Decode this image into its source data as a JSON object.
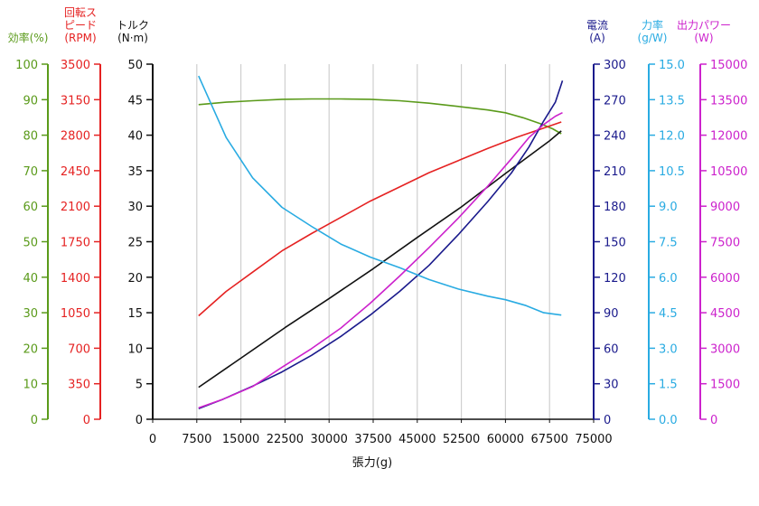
{
  "chart_data": {
    "type": "line",
    "xlabel": "張力(g)",
    "x_axis": {
      "min": 0,
      "max": 75000,
      "ticks": [
        0,
        7500,
        15000,
        22500,
        30000,
        37500,
        45000,
        52500,
        60000,
        67500,
        75000
      ]
    },
    "vertical_gridlines": [
      7500,
      15000,
      22500,
      30000,
      37500,
      45000,
      52500,
      60000,
      67500
    ],
    "y_axes": [
      {
        "key": "efficiency",
        "title_lines": [
          "効率(%)"
        ],
        "color": "#5a9a1a",
        "min": 0,
        "max": 100,
        "ticks": [
          0,
          10,
          20,
          30,
          40,
          50,
          60,
          70,
          80,
          90,
          100
        ]
      },
      {
        "key": "rpm",
        "title_lines": [
          "回転ス",
          "ピード",
          "(RPM)"
        ],
        "color": "#e52222",
        "min": 0,
        "max": 3500,
        "ticks": [
          0,
          350,
          700,
          1050,
          1400,
          1750,
          2100,
          2450,
          2800,
          3150,
          3500
        ]
      },
      {
        "key": "torque",
        "title_lines": [
          "トルク",
          "(N·m)"
        ],
        "color": "#111111",
        "min": 0,
        "max": 50,
        "ticks": [
          0,
          5,
          10,
          15,
          20,
          25,
          30,
          35,
          40,
          45,
          50
        ]
      },
      {
        "key": "current",
        "title_lines": [
          "電流",
          "(A)"
        ],
        "color": "#1a1a8c",
        "min": 0,
        "max": 300,
        "ticks": [
          0,
          30,
          60,
          90,
          120,
          150,
          180,
          210,
          240,
          270,
          300
        ]
      },
      {
        "key": "force",
        "title_lines": [
          "力率",
          "(g/W)"
        ],
        "color": "#29abe2",
        "min": 0,
        "max": 15,
        "ticks": [
          "0.0",
          "1.5",
          "3.0",
          "4.5",
          "6.0",
          "7.5",
          "9.0",
          "10.5",
          "12.0",
          "13.5",
          "15.0"
        ]
      },
      {
        "key": "power",
        "title_lines": [
          "出力パワー",
          "(W)"
        ],
        "color": "#cc22cc",
        "min": 0,
        "max": 15000,
        "ticks": [
          0,
          1500,
          3000,
          4500,
          6000,
          7500,
          9000,
          10500,
          12000,
          13500,
          15000
        ]
      }
    ],
    "series": [
      {
        "axis": "efficiency",
        "color": "#5a9a1a",
        "points": [
          [
            7800,
            88.6
          ],
          [
            12500,
            89.3
          ],
          [
            17000,
            89.7
          ],
          [
            22000,
            90.1
          ],
          [
            27000,
            90.2
          ],
          [
            32000,
            90.2
          ],
          [
            37000,
            90.1
          ],
          [
            42000,
            89.7
          ],
          [
            47000,
            89.0
          ],
          [
            52000,
            88.1
          ],
          [
            57000,
            87.1
          ],
          [
            60000,
            86.3
          ],
          [
            63000,
            84.9
          ],
          [
            66000,
            83.2
          ],
          [
            68000,
            81.8
          ],
          [
            69500,
            80.4
          ]
        ]
      },
      {
        "axis": "rpm",
        "color": "#e52222",
        "points": [
          [
            7800,
            1020
          ],
          [
            12500,
            1260
          ],
          [
            17000,
            1450
          ],
          [
            22000,
            1660
          ],
          [
            27000,
            1830
          ],
          [
            32000,
            1990
          ],
          [
            37000,
            2150
          ],
          [
            42000,
            2290
          ],
          [
            47000,
            2430
          ],
          [
            52000,
            2550
          ],
          [
            57000,
            2670
          ],
          [
            62000,
            2780
          ],
          [
            66000,
            2860
          ],
          [
            69500,
            2930
          ]
        ]
      },
      {
        "axis": "torque",
        "color": "#111111",
        "points": [
          [
            7800,
            4.5
          ],
          [
            15000,
            8.6
          ],
          [
            22500,
            12.9
          ],
          [
            30000,
            17.0
          ],
          [
            37500,
            21.2
          ],
          [
            45000,
            25.6
          ],
          [
            52500,
            29.9
          ],
          [
            60000,
            34.6
          ],
          [
            67500,
            39.2
          ],
          [
            69500,
            40.6
          ]
        ]
      },
      {
        "axis": "current",
        "color": "#1a1a8c",
        "points": [
          [
            7800,
            9
          ],
          [
            12000,
            17
          ],
          [
            17000,
            28
          ],
          [
            22000,
            40
          ],
          [
            27000,
            54
          ],
          [
            32000,
            70
          ],
          [
            37000,
            88
          ],
          [
            42000,
            108
          ],
          [
            47000,
            130
          ],
          [
            52000,
            156
          ],
          [
            57000,
            184
          ],
          [
            61000,
            208
          ],
          [
            64000,
            230
          ],
          [
            66500,
            252
          ],
          [
            68500,
            268
          ],
          [
            69500,
            283
          ],
          [
            69700,
            286
          ]
        ]
      },
      {
        "axis": "force",
        "color": "#29abe2",
        "points": [
          [
            7800,
            14.5
          ],
          [
            12500,
            11.9
          ],
          [
            17000,
            10.2
          ],
          [
            22000,
            8.95
          ],
          [
            27000,
            8.15
          ],
          [
            32000,
            7.4
          ],
          [
            37000,
            6.85
          ],
          [
            42000,
            6.4
          ],
          [
            47000,
            5.9
          ],
          [
            52000,
            5.5
          ],
          [
            57000,
            5.2
          ],
          [
            60000,
            5.05
          ],
          [
            63500,
            4.8
          ],
          [
            66500,
            4.5
          ],
          [
            69500,
            4.4
          ]
        ]
      },
      {
        "axis": "power",
        "color": "#cc22cc",
        "points": [
          [
            7800,
            480
          ],
          [
            12000,
            850
          ],
          [
            17000,
            1380
          ],
          [
            22000,
            2200
          ],
          [
            27000,
            2980
          ],
          [
            32000,
            3850
          ],
          [
            37000,
            4900
          ],
          [
            42000,
            6050
          ],
          [
            47000,
            7250
          ],
          [
            52000,
            8500
          ],
          [
            57000,
            9850
          ],
          [
            61000,
            11000
          ],
          [
            64000,
            11900
          ],
          [
            66500,
            12450
          ],
          [
            68500,
            12800
          ],
          [
            69700,
            12950
          ]
        ]
      }
    ]
  }
}
